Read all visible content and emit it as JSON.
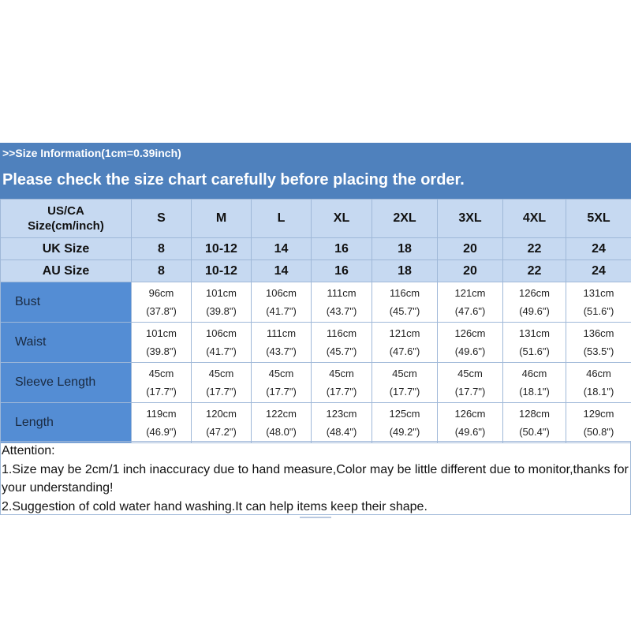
{
  "banner": {
    "info": ">>Size Information(1cm=0.39inch)",
    "check": "Please check the size chart carefully before placing the order."
  },
  "table": {
    "header_label_line1": "US/CA",
    "header_label_line2": "Size(cm/inch)",
    "sizes": [
      "S",
      "M",
      "L",
      "XL",
      "2XL",
      "3XL",
      "4XL",
      "5XL"
    ],
    "uk_label": "UK Size",
    "uk": [
      "8",
      "10-12",
      "14",
      "16",
      "18",
      "20",
      "22",
      "24"
    ],
    "au_label": "AU Size",
    "au": [
      "8",
      "10-12",
      "14",
      "16",
      "18",
      "20",
      "22",
      "24"
    ],
    "rows": [
      {
        "label": "Bust",
        "cm": [
          "96cm",
          "101cm",
          "106cm",
          "111cm",
          "116cm",
          "121cm",
          "126cm",
          "131cm"
        ],
        "inch": [
          "(37.8\")",
          "(39.8\")",
          "(41.7\")",
          "(43.7\")",
          "(45.7\")",
          "(47.6\")",
          "(49.6\")",
          "(51.6\")"
        ]
      },
      {
        "label": "Waist",
        "cm": [
          "101cm",
          "106cm",
          "111cm",
          "116cm",
          "121cm",
          "126cm",
          "131cm",
          "136cm"
        ],
        "inch": [
          "(39.8\")",
          "(41.7\")",
          "(43.7\")",
          "(45.7\")",
          "(47.6\")",
          "(49.6\")",
          "(51.6\")",
          "(53.5\")"
        ]
      },
      {
        "label": "Sleeve Length",
        "cm": [
          "45cm",
          "45cm",
          "45cm",
          "45cm",
          "45cm",
          "45cm",
          "46cm",
          "46cm"
        ],
        "inch": [
          "(17.7\")",
          "(17.7\")",
          "(17.7\")",
          "(17.7\")",
          "(17.7\")",
          "(17.7\")",
          "(18.1\")",
          "(18.1\")"
        ]
      },
      {
        "label": "Length",
        "cm": [
          "119cm",
          "120cm",
          "122cm",
          "123cm",
          "125cm",
          "126cm",
          "128cm",
          "129cm"
        ],
        "inch": [
          "(46.9\")",
          "(47.2\")",
          "(48.0\")",
          "(48.4\")",
          "(49.2\")",
          "(49.6\")",
          "(50.4\")",
          "(50.8\")"
        ]
      }
    ]
  },
  "notes": {
    "attention": "Attention:",
    "line1": "1.Size may be 2cm/1 inch inaccuracy due to hand measure,Color may be little different due to monitor,thanks for your understanding!",
    "line2": "2.Suggestion of cold water hand washing.It can help items keep their shape."
  },
  "colors": {
    "banner": "#4f81bd",
    "header_fill": "#c6d9f1",
    "label_fill": "#548dd4"
  }
}
